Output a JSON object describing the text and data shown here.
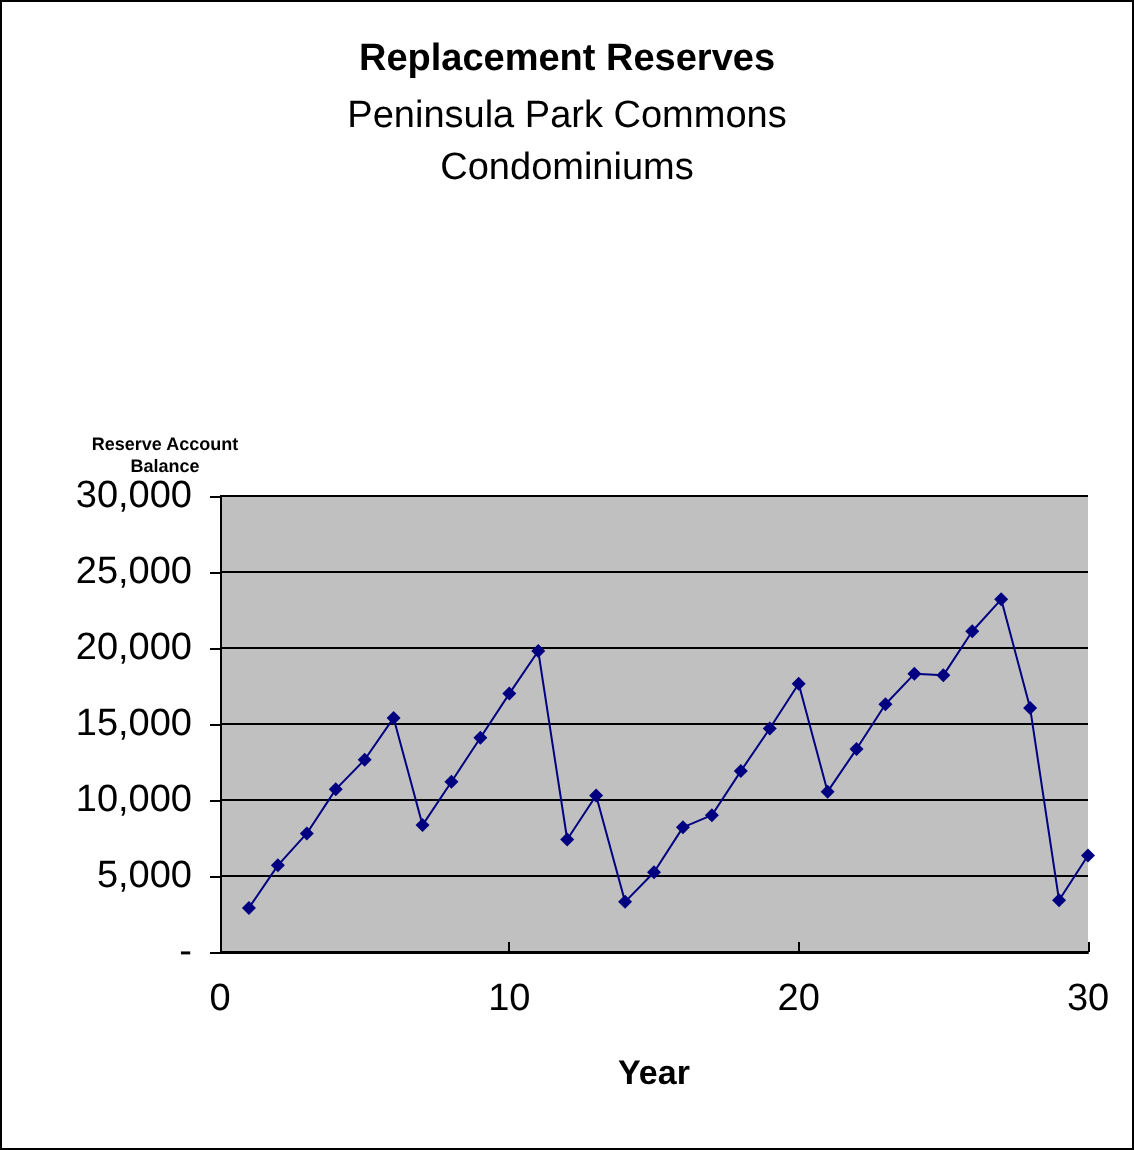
{
  "chart_data": {
    "type": "line",
    "title": "Replacement Reserves",
    "subtitle": "Peninsula Park Commons\nCondominiums",
    "xlabel": "Year",
    "ylabel": "Reserve Account\nBalance",
    "x": [
      1,
      2,
      3,
      4,
      5,
      6,
      7,
      8,
      9,
      10,
      11,
      12,
      13,
      14,
      15,
      16,
      17,
      18,
      19,
      20,
      21,
      22,
      23,
      24,
      25,
      26,
      27,
      28,
      29,
      30
    ],
    "series": [
      {
        "color": "#000080",
        "values": [
          2900,
          5700,
          7800,
          10700,
          12650,
          15400,
          8350,
          11200,
          14100,
          17000,
          19800,
          7400,
          10300,
          3300,
          5250,
          8200,
          9000,
          11900,
          14700,
          17650,
          10550,
          13350,
          16300,
          18300,
          18200,
          21100,
          23200,
          16050,
          3400,
          6350
        ]
      }
    ],
    "xlim": [
      0,
      30
    ],
    "xticks": [
      0,
      10,
      20,
      30
    ],
    "ylim": [
      0,
      30000
    ],
    "yticks": [
      {
        "value": 0,
        "label": "-"
      },
      {
        "value": 5000,
        "label": "5,000"
      },
      {
        "value": 10000,
        "label": "10,000"
      },
      {
        "value": 15000,
        "label": "15,000"
      },
      {
        "value": 20000,
        "label": "20,000"
      },
      {
        "value": 25000,
        "label": "25,000"
      },
      {
        "value": 30000,
        "label": "30,000"
      }
    ],
    "grid": "y",
    "marker": "diamond",
    "line_style": "solid"
  }
}
